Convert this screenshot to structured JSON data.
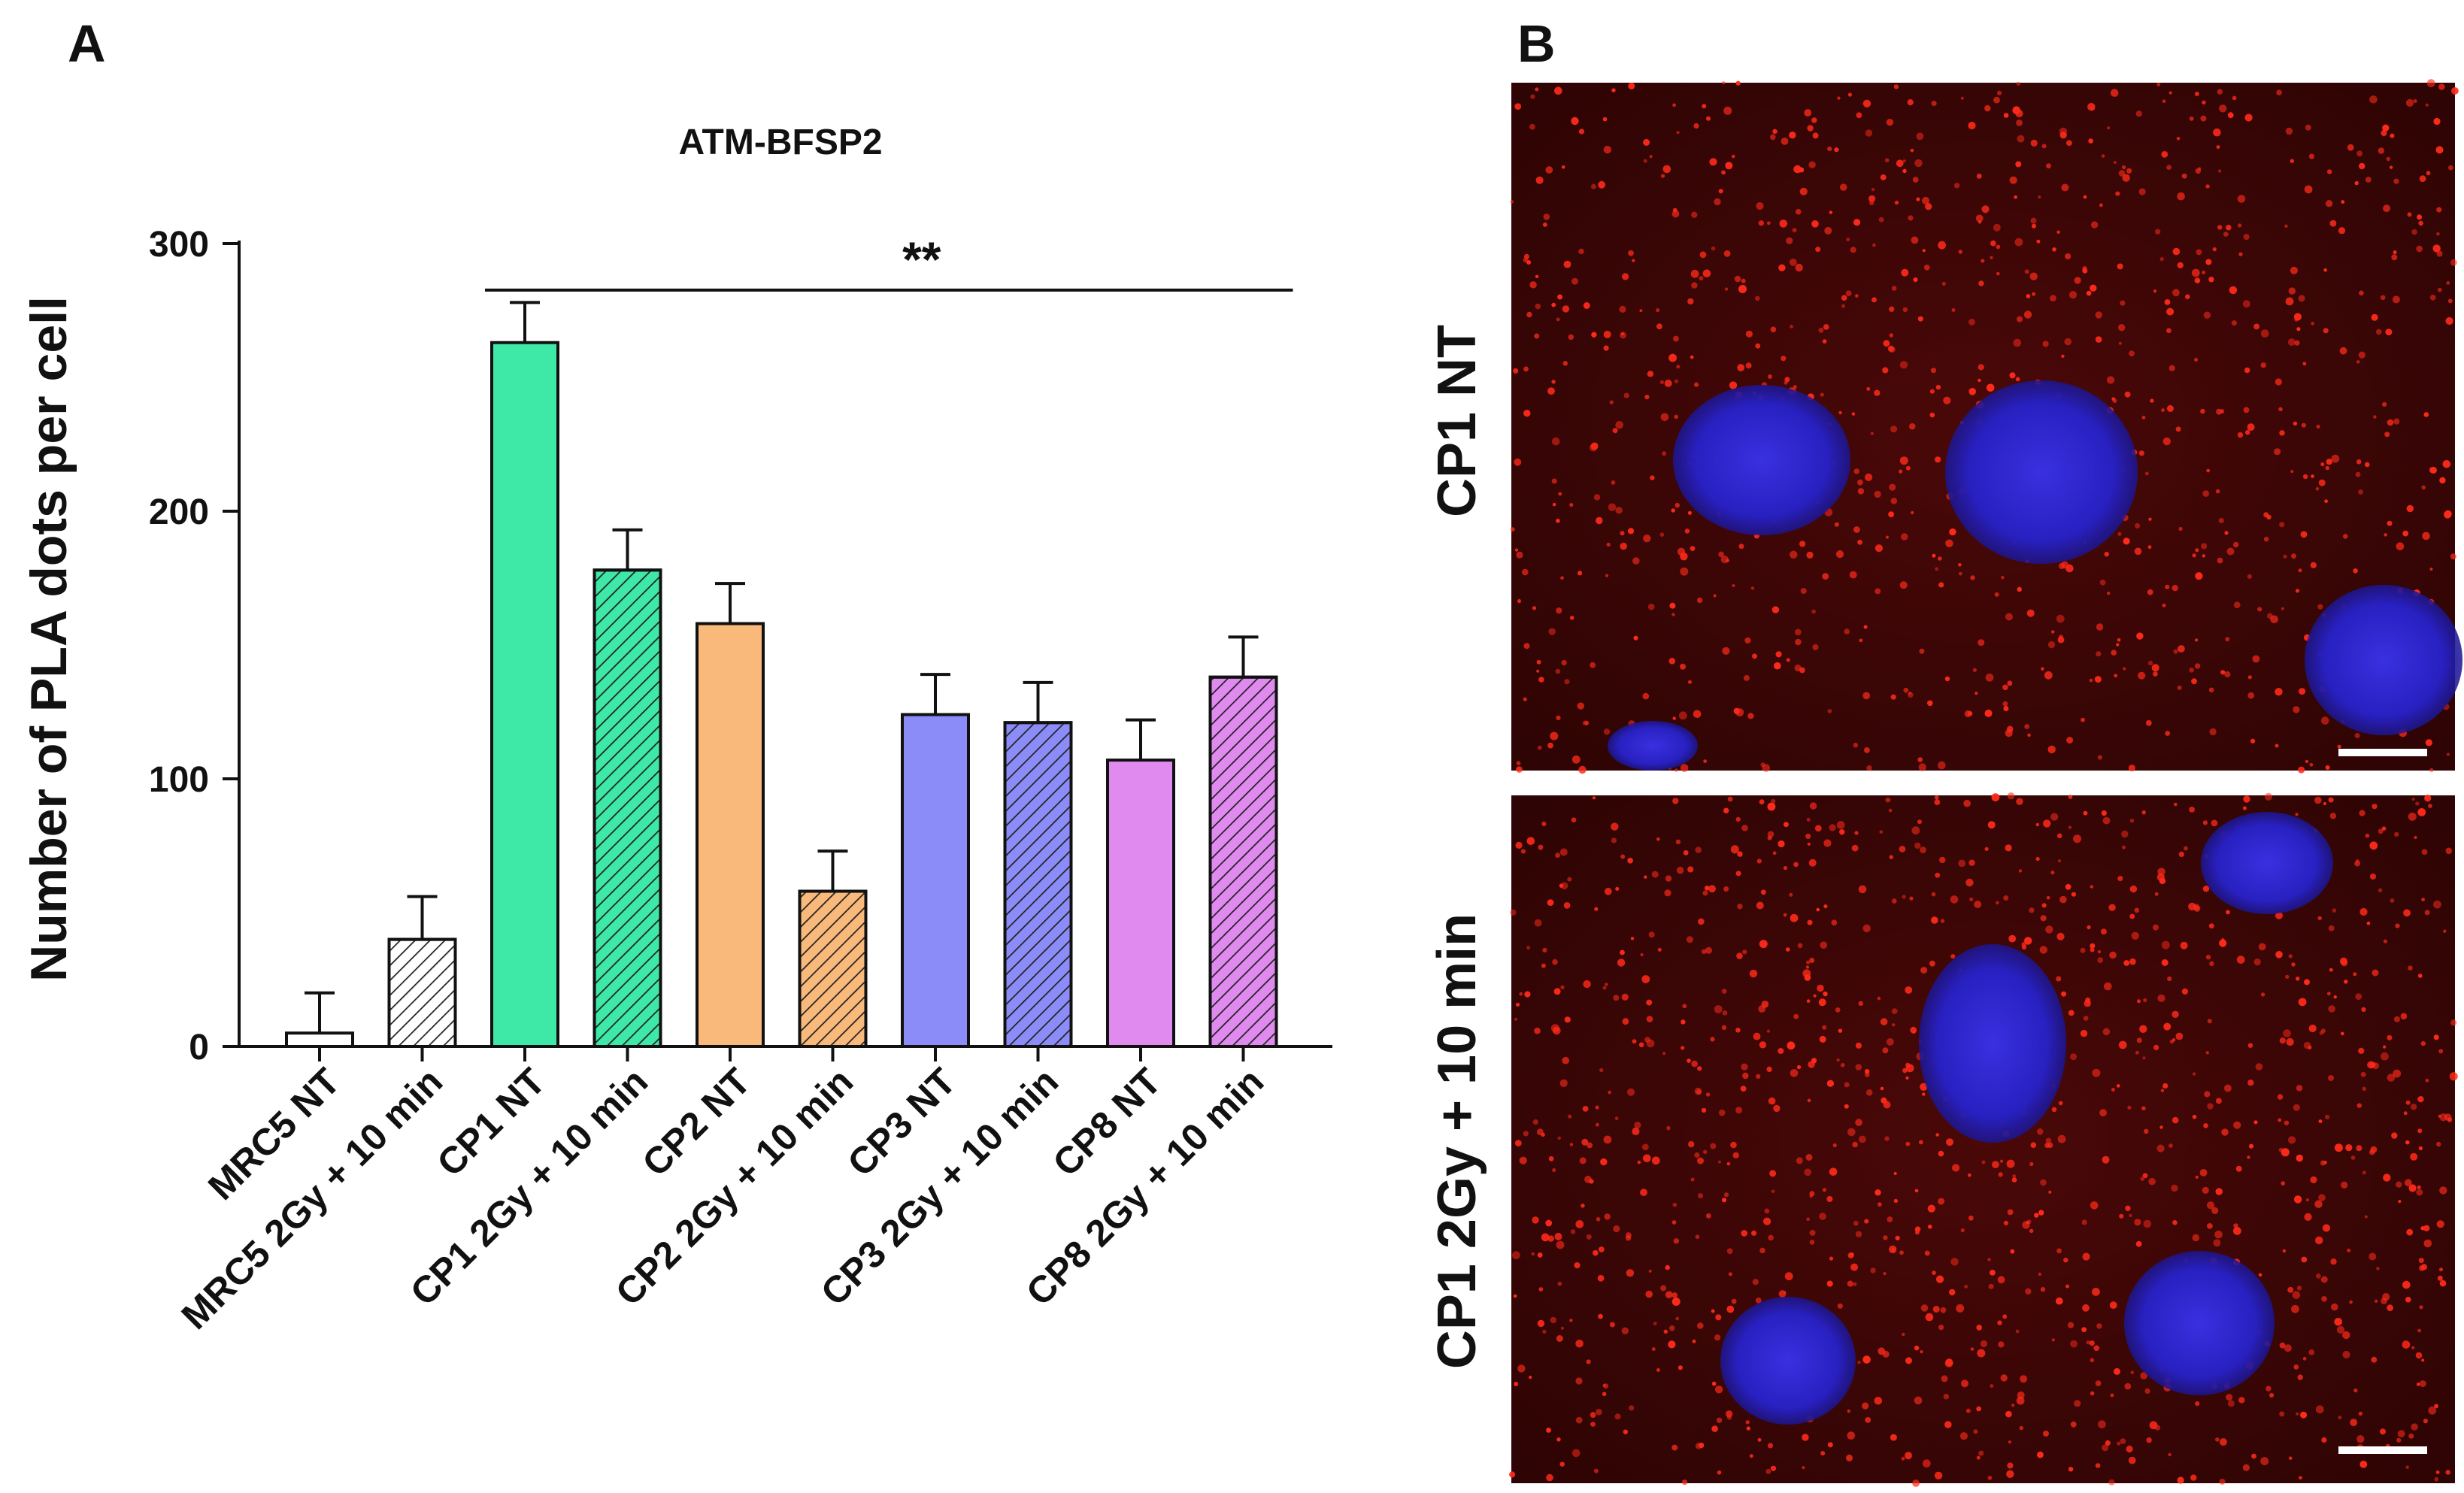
{
  "panels": {
    "a_label": "A",
    "b_label": "B"
  },
  "micrographs": {
    "top_label": "CP1 NT",
    "bottom_label": "CP1 2Gy + 10 min",
    "background_color": "#3a0606",
    "nucleus_color": "#2b22c8",
    "dot_color": "#ff2a1a"
  },
  "chart_data": {
    "type": "bar",
    "title": "ATM-BFSP2",
    "xlabel": "",
    "ylabel": "Number of PLA dots per cell",
    "ylim": [
      0,
      300
    ],
    "yticks": [
      0,
      100,
      200,
      300
    ],
    "categories": [
      "MRC5 NT",
      "MRC5 2Gy + 10 min",
      "CP1 NT",
      "CP1 2Gy + 10 min",
      "CP2 NT",
      "CP2 2Gy + 10 min",
      "CP3 NT",
      "CP3 2Gy + 10 min",
      "CP8 NT",
      "CP8 2Gy + 10 min"
    ],
    "values": [
      5,
      40,
      263,
      178,
      158,
      58,
      124,
      121,
      107,
      138
    ],
    "errors": [
      15,
      16,
      15,
      15,
      15,
      15,
      15,
      15,
      15,
      15
    ],
    "colors": [
      "#ffffff",
      "#ffffff",
      "#3ee8a6",
      "#3ee8a6",
      "#f8b97a",
      "#f8b97a",
      "#8c8cf8",
      "#8c8cf8",
      "#e08af0",
      "#e08af0"
    ],
    "hatched": [
      false,
      true,
      false,
      true,
      false,
      true,
      false,
      true,
      false,
      true
    ],
    "significance": {
      "text": "**",
      "from_category": "CP1 NT",
      "to_category": "CP8 2Gy + 10 min",
      "y": 286
    },
    "grid": false
  }
}
